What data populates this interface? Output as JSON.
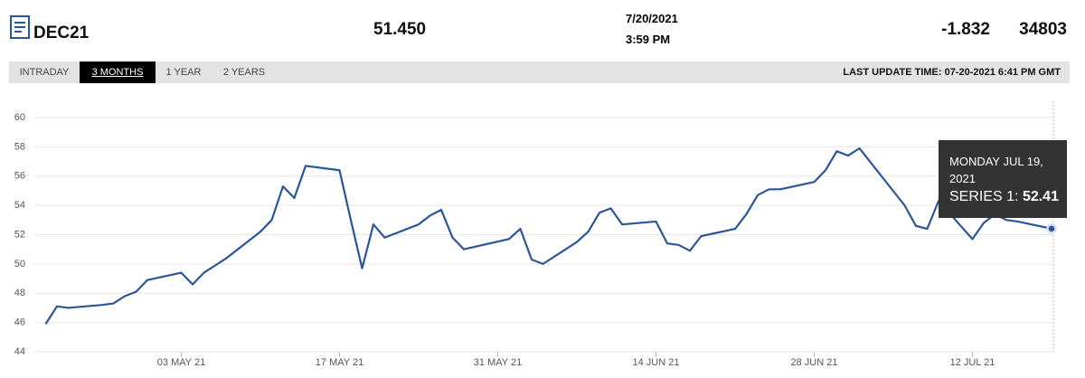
{
  "header": {
    "symbol": "DEC21",
    "price": "51.450",
    "date": "7/20/2021",
    "time": "3:59 PM",
    "change": "-1.832",
    "volume": "34803"
  },
  "tabs": {
    "items": [
      "INTRADAY",
      "3 MONTHS",
      "1 YEAR",
      "2 YEARS"
    ],
    "active": 1,
    "update": "LAST UPDATE TIME: 07-20-2021 6:41 PM GMT"
  },
  "chart_data": {
    "type": "line",
    "x": [
      "2021-04-21",
      "2021-04-22",
      "2021-04-23",
      "2021-04-26",
      "2021-04-27",
      "2021-04-28",
      "2021-04-29",
      "2021-04-30",
      "2021-05-03",
      "2021-05-04",
      "2021-05-05",
      "2021-05-06",
      "2021-05-07",
      "2021-05-10",
      "2021-05-11",
      "2021-05-12",
      "2021-05-13",
      "2021-05-14",
      "2021-05-17",
      "2021-05-18",
      "2021-05-19",
      "2021-05-20",
      "2021-05-21",
      "2021-05-24",
      "2021-05-25",
      "2021-05-26",
      "2021-05-27",
      "2021-05-28",
      "2021-06-01",
      "2021-06-02",
      "2021-06-03",
      "2021-06-04",
      "2021-06-07",
      "2021-06-08",
      "2021-06-09",
      "2021-06-10",
      "2021-06-11",
      "2021-06-14",
      "2021-06-15",
      "2021-06-16",
      "2021-06-17",
      "2021-06-18",
      "2021-06-21",
      "2021-06-22",
      "2021-06-23",
      "2021-06-24",
      "2021-06-25",
      "2021-06-28",
      "2021-06-29",
      "2021-06-30",
      "2021-07-01",
      "2021-07-02",
      "2021-07-06",
      "2021-07-07",
      "2021-07-08",
      "2021-07-09",
      "2021-07-12",
      "2021-07-13",
      "2021-07-14",
      "2021-07-15",
      "2021-07-16",
      "2021-07-19"
    ],
    "series": [
      {
        "color": "#2a5597",
        "values": [
          45.9,
          47.1,
          47.0,
          47.2,
          47.3,
          47.8,
          48.1,
          48.9,
          49.4,
          48.6,
          49.4,
          49.9,
          50.4,
          52.2,
          53.0,
          55.3,
          54.5,
          56.7,
          56.4,
          53.0,
          49.7,
          52.7,
          51.8,
          52.7,
          53.3,
          53.7,
          51.8,
          51.0,
          51.7,
          52.4,
          50.3,
          50.0,
          51.5,
          52.2,
          53.5,
          53.8,
          52.7,
          52.9,
          51.4,
          51.3,
          50.9,
          51.9,
          52.4,
          53.4,
          54.7,
          55.1,
          55.1,
          55.6,
          56.4,
          57.7,
          57.4,
          57.9,
          54.0,
          52.6,
          52.4,
          54.3,
          51.7,
          52.8,
          53.4,
          53.0,
          52.9,
          52.41
        ]
      }
    ],
    "xlim": [
      "2021-04-20",
      "2021-07-19"
    ],
    "xticks": [
      {
        "value": "2021-05-03",
        "label": "03 MAY 21"
      },
      {
        "value": "2021-05-17",
        "label": "17 MAY 21"
      },
      {
        "value": "2021-05-31",
        "label": "31 MAY 21"
      },
      {
        "value": "2021-06-14",
        "label": "14 JUN 21"
      },
      {
        "value": "2021-06-28",
        "label": "28 JUN 21"
      },
      {
        "value": "2021-07-12",
        "label": "12 JUL 21"
      }
    ],
    "ylim": [
      44,
      60
    ],
    "yticks": [
      44,
      46,
      48,
      50,
      52,
      54,
      56,
      58,
      60
    ],
    "grid": true,
    "tooltip": {
      "title": "MONDAY JUL 19, 2021",
      "series_label": "SERIES 1:"
    }
  }
}
